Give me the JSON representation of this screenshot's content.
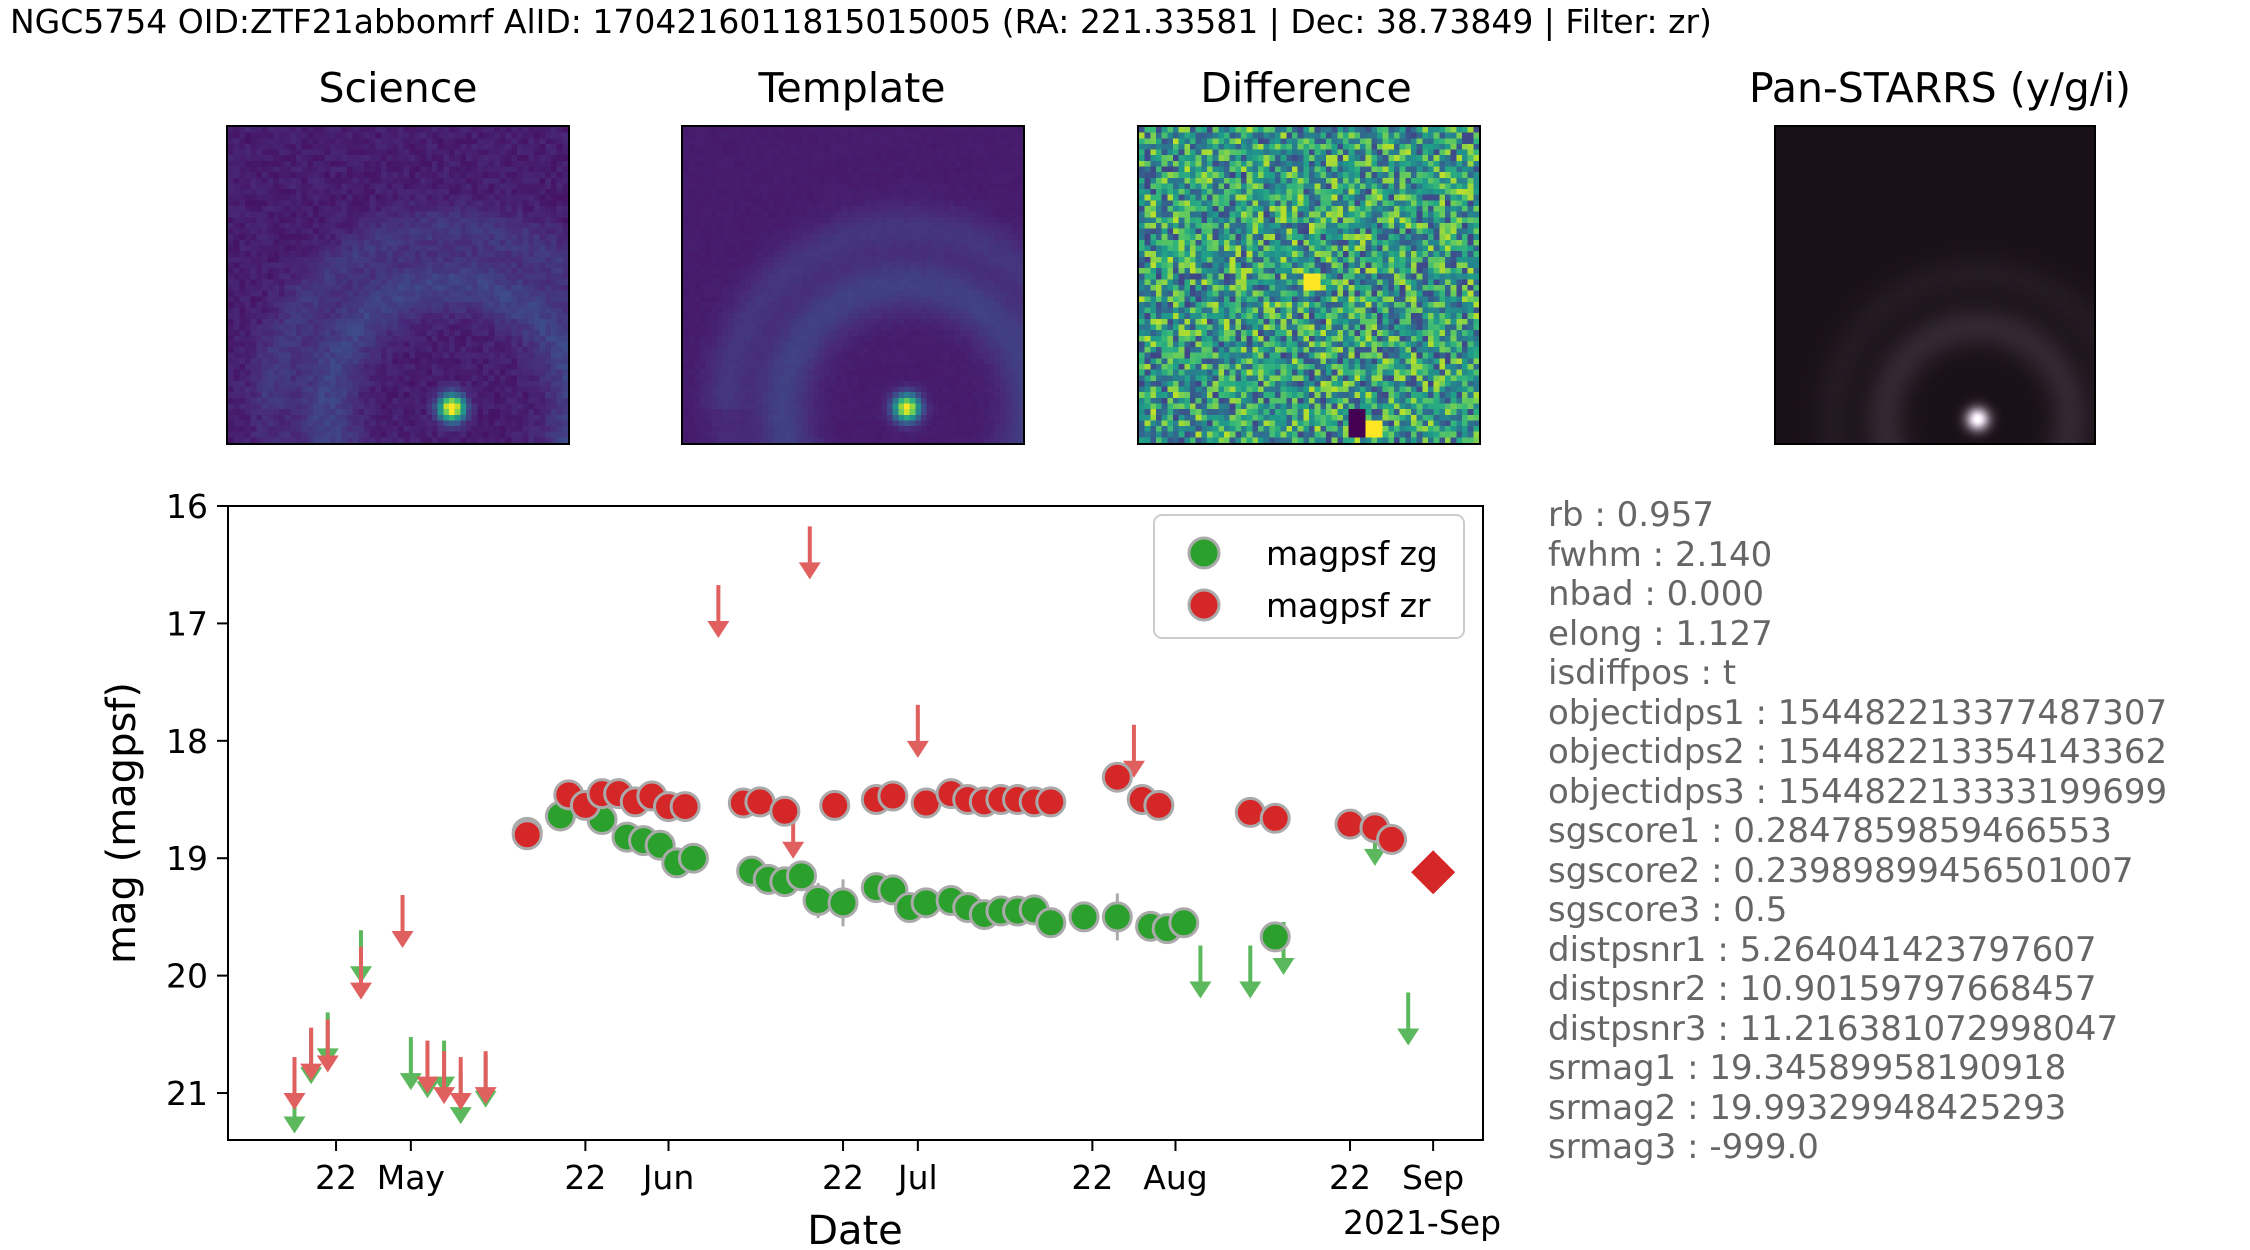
{
  "header": {
    "title": "NGC5754 OID:ZTF21abbomrf AlID: 1704216011815015005 (RA: 221.33581 | Dec: 38.73849 | Filter: zr)"
  },
  "cutouts": [
    {
      "label": "Science",
      "style": "viridis-galaxy"
    },
    {
      "label": "Template",
      "style": "viridis-galaxy-smooth"
    },
    {
      "label": "Difference",
      "style": "viridis-noise"
    },
    {
      "label": "Pan-STARRS (y/g/i)",
      "style": "color-galaxy"
    }
  ],
  "metadata_lines": [
    "rb : 0.957",
    "fwhm : 2.140",
    "nbad : 0.000",
    "elong : 1.127",
    "isdiffpos : t",
    "objectidps1 : 154482213377487307",
    "objectidps2 : 154482213354143362",
    "objectidps3 : 154482213333199699",
    "sgscore1 : 0.2847859859466553",
    "sgscore2 : 0.23989899456501007",
    "sgscore3 : 0.5",
    "distpsnr1 : 5.264041423797607",
    "distpsnr2 : 10.90159797668457",
    "distpsnr3 : 11.216381072998047",
    "srmag1 : 19.34589958190918",
    "srmag2 : 19.99329948425293",
    "srmag3 : -999.0"
  ],
  "colors": {
    "zg": "#2ca02c",
    "zr": "#d62728",
    "zg_limit": "#5cb85c",
    "zr_limit": "#e06060",
    "current": "#d62728"
  },
  "chart_data": {
    "type": "scatter",
    "xlabel": "Date",
    "ylabel": "mag (magpsf)",
    "xlim": [
      "2021-04-09",
      "2021-09-07"
    ],
    "ylim": [
      21.4,
      16.0
    ],
    "y_inverted": true,
    "y_ticks": [
      16,
      17,
      18,
      19,
      20,
      21
    ],
    "x_ticks": [
      {
        "date": "2021-04-22",
        "label": "22"
      },
      {
        "date": "2021-05-01",
        "label": "May"
      },
      {
        "date": "2021-05-22",
        "label": "22"
      },
      {
        "date": "2021-06-01",
        "label": "Jun"
      },
      {
        "date": "2021-06-22",
        "label": "22"
      },
      {
        "date": "2021-07-01",
        "label": "Jul"
      },
      {
        "date": "2021-07-22",
        "label": "22"
      },
      {
        "date": "2021-08-01",
        "label": "Aug"
      },
      {
        "date": "2021-08-22",
        "label": "22"
      },
      {
        "date": "2021-09-01",
        "label": "Sep"
      }
    ],
    "x_offset_label": "2021-Sep",
    "legend": {
      "placement": "top-right",
      "entries": [
        "magpsf zg",
        "magpsf zr"
      ]
    },
    "series": [
      {
        "name": "magpsf zg",
        "filter": "zg",
        "points": [
          {
            "date": "2021-05-15",
            "mag": 18.78,
            "err": 0.05
          },
          {
            "date": "2021-05-19",
            "mag": 18.64,
            "err": 0.04
          },
          {
            "date": "2021-05-24",
            "mag": 18.67,
            "err": 0.04
          },
          {
            "date": "2021-05-27",
            "mag": 18.82,
            "err": 0.04
          },
          {
            "date": "2021-05-29",
            "mag": 18.85,
            "err": 0.04
          },
          {
            "date": "2021-05-31",
            "mag": 18.89,
            "err": 0.05
          },
          {
            "date": "2021-06-02",
            "mag": 19.04,
            "err": 0.06
          },
          {
            "date": "2021-06-04",
            "mag": 19.0,
            "err": 0.05
          },
          {
            "date": "2021-06-11",
            "mag": 19.11,
            "err": 0.05
          },
          {
            "date": "2021-06-13",
            "mag": 19.18,
            "err": 0.05
          },
          {
            "date": "2021-06-15",
            "mag": 19.2,
            "err": 0.06
          },
          {
            "date": "2021-06-17",
            "mag": 19.15,
            "err": 0.08
          },
          {
            "date": "2021-06-19",
            "mag": 19.36,
            "err": 0.15
          },
          {
            "date": "2021-06-22",
            "mag": 19.38,
            "err": 0.2
          },
          {
            "date": "2021-06-26",
            "mag": 19.25,
            "err": 0.08
          },
          {
            "date": "2021-06-28",
            "mag": 19.27,
            "err": 0.06
          },
          {
            "date": "2021-06-30",
            "mag": 19.42,
            "err": 0.07
          },
          {
            "date": "2021-07-02",
            "mag": 19.38,
            "err": 0.06
          },
          {
            "date": "2021-07-05",
            "mag": 19.36,
            "err": 0.06
          },
          {
            "date": "2021-07-07",
            "mag": 19.42,
            "err": 0.06
          },
          {
            "date": "2021-07-09",
            "mag": 19.48,
            "err": 0.07
          },
          {
            "date": "2021-07-11",
            "mag": 19.45,
            "err": 0.06
          },
          {
            "date": "2021-07-13",
            "mag": 19.45,
            "err": 0.06
          },
          {
            "date": "2021-07-15",
            "mag": 19.44,
            "err": 0.06
          },
          {
            "date": "2021-07-17",
            "mag": 19.55,
            "err": 0.08
          },
          {
            "date": "2021-07-21",
            "mag": 19.5,
            "err": 0.07
          },
          {
            "date": "2021-07-25",
            "mag": 19.5,
            "err": 0.2
          },
          {
            "date": "2021-07-29",
            "mag": 19.58,
            "err": 0.08
          },
          {
            "date": "2021-07-31",
            "mag": 19.6,
            "err": 0.08
          },
          {
            "date": "2021-08-02",
            "mag": 19.55,
            "err": 0.07
          },
          {
            "date": "2021-08-13",
            "mag": 19.67,
            "err": 0.08
          }
        ]
      },
      {
        "name": "magpsf zr",
        "filter": "zr",
        "points": [
          {
            "date": "2021-05-15",
            "mag": 18.8,
            "err": 0.04
          },
          {
            "date": "2021-05-20",
            "mag": 18.46,
            "err": 0.04
          },
          {
            "date": "2021-05-22",
            "mag": 18.55,
            "err": 0.04
          },
          {
            "date": "2021-05-24",
            "mag": 18.45,
            "err": 0.04
          },
          {
            "date": "2021-05-26",
            "mag": 18.45,
            "err": 0.04
          },
          {
            "date": "2021-05-28",
            "mag": 18.52,
            "err": 0.04
          },
          {
            "date": "2021-05-30",
            "mag": 18.47,
            "err": 0.04
          },
          {
            "date": "2021-06-01",
            "mag": 18.56,
            "err": 0.04
          },
          {
            "date": "2021-06-03",
            "mag": 18.56,
            "err": 0.04
          },
          {
            "date": "2021-06-10",
            "mag": 18.53,
            "err": 0.04
          },
          {
            "date": "2021-06-12",
            "mag": 18.52,
            "err": 0.04
          },
          {
            "date": "2021-06-15",
            "mag": 18.6,
            "err": 0.04
          },
          {
            "date": "2021-06-21",
            "mag": 18.55,
            "err": 0.04
          },
          {
            "date": "2021-06-26",
            "mag": 18.5,
            "err": 0.04
          },
          {
            "date": "2021-06-28",
            "mag": 18.47,
            "err": 0.04
          },
          {
            "date": "2021-07-02",
            "mag": 18.53,
            "err": 0.04
          },
          {
            "date": "2021-07-05",
            "mag": 18.45,
            "err": 0.04
          },
          {
            "date": "2021-07-07",
            "mag": 18.5,
            "err": 0.04
          },
          {
            "date": "2021-07-09",
            "mag": 18.52,
            "err": 0.04
          },
          {
            "date": "2021-07-11",
            "mag": 18.5,
            "err": 0.04
          },
          {
            "date": "2021-07-13",
            "mag": 18.5,
            "err": 0.04
          },
          {
            "date": "2021-07-15",
            "mag": 18.52,
            "err": 0.04
          },
          {
            "date": "2021-07-17",
            "mag": 18.52,
            "err": 0.04
          },
          {
            "date": "2021-07-25",
            "mag": 18.31,
            "err": 0.04
          },
          {
            "date": "2021-07-28",
            "mag": 18.5,
            "err": 0.04
          },
          {
            "date": "2021-07-30",
            "mag": 18.55,
            "err": 0.04
          },
          {
            "date": "2021-08-10",
            "mag": 18.61,
            "err": 0.04
          },
          {
            "date": "2021-08-13",
            "mag": 18.66,
            "err": 0.04
          },
          {
            "date": "2021-08-22",
            "mag": 18.71,
            "err": 0.04
          },
          {
            "date": "2021-08-25",
            "mag": 18.74,
            "err": 0.04
          },
          {
            "date": "2021-08-27",
            "mag": 18.84,
            "err": 0.04
          }
        ]
      },
      {
        "name": "",
        "filter": "zg",
        "kind": "upper_limit",
        "points": [
          {
            "date": "2021-04-17",
            "mag": 21.2
          },
          {
            "date": "2021-04-19",
            "mag": 20.78
          },
          {
            "date": "2021-04-21",
            "mag": 20.62
          },
          {
            "date": "2021-04-25",
            "mag": 19.92
          },
          {
            "date": "2021-05-01",
            "mag": 20.83
          },
          {
            "date": "2021-05-03",
            "mag": 20.9
          },
          {
            "date": "2021-05-05",
            "mag": 20.86
          },
          {
            "date": "2021-05-07",
            "mag": 21.12
          },
          {
            "date": "2021-05-10",
            "mag": 20.98
          },
          {
            "date": "2021-08-04",
            "mag": 20.05
          },
          {
            "date": "2021-08-10",
            "mag": 20.05
          },
          {
            "date": "2021-08-14",
            "mag": 19.85
          },
          {
            "date": "2021-08-25",
            "mag": 18.92
          },
          {
            "date": "2021-08-29",
            "mag": 20.45
          }
        ]
      },
      {
        "name": "",
        "filter": "zr",
        "kind": "upper_limit",
        "points": [
          {
            "date": "2021-04-17",
            "mag": 21.0
          },
          {
            "date": "2021-04-19",
            "mag": 20.75
          },
          {
            "date": "2021-04-21",
            "mag": 20.68
          },
          {
            "date": "2021-04-25",
            "mag": 20.06
          },
          {
            "date": "2021-04-30",
            "mag": 19.62
          },
          {
            "date": "2021-05-03",
            "mag": 20.86
          },
          {
            "date": "2021-05-05",
            "mag": 20.95
          },
          {
            "date": "2021-05-07",
            "mag": 21.0
          },
          {
            "date": "2021-05-10",
            "mag": 20.95
          },
          {
            "date": "2021-06-07",
            "mag": 16.98
          },
          {
            "date": "2021-06-16",
            "mag": 18.86
          },
          {
            "date": "2021-06-18",
            "mag": 16.48
          },
          {
            "date": "2021-07-01",
            "mag": 18.0
          },
          {
            "date": "2021-07-27",
            "mag": 18.17
          }
        ]
      },
      {
        "name": "",
        "filter": "zr",
        "kind": "current_alert",
        "marker": "diamond",
        "points": [
          {
            "date": "2021-09-01",
            "mag": 19.12
          }
        ]
      }
    ]
  }
}
